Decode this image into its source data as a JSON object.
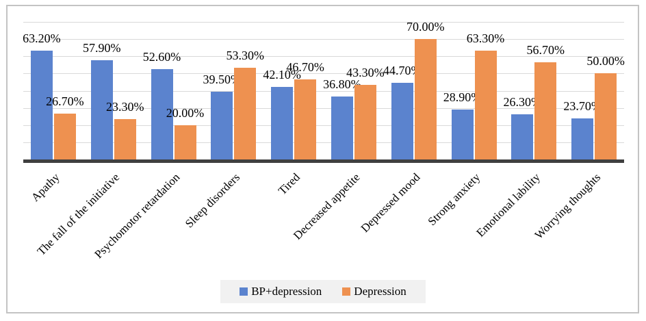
{
  "chart_data": {
    "type": "bar",
    "title": "",
    "xlabel": "",
    "ylabel": "",
    "categories": [
      "Apathy",
      "The fall of the initiative",
      "Psychomotor retardation",
      "Sleep disorders",
      "Tired",
      "Decreased appetite",
      "Depressed mood",
      "Strong anxiety",
      "Emotional lability",
      "Worrying thoughts"
    ],
    "series": [
      {
        "name": "BP+depression",
        "color": "#5B83CE",
        "values": [
          63.2,
          57.9,
          52.6,
          39.5,
          42.1,
          36.8,
          44.7,
          28.9,
          26.3,
          23.7
        ],
        "data_labels": [
          "63.20%",
          "57.90%",
          "52.60%",
          "39.50%",
          "42.10%",
          "36.80%",
          "44.70%",
          "28.90%",
          "26.30%",
          "23.70%"
        ]
      },
      {
        "name": "Depression",
        "color": "#EE9150",
        "values": [
          26.7,
          23.3,
          20.0,
          53.3,
          46.7,
          43.3,
          70.0,
          63.3,
          56.7,
          50.0
        ],
        "data_labels": [
          "26.70%",
          "23.30%",
          "20.00%",
          "53.30%",
          "46.70%",
          "43.30%",
          "70.00%",
          "63.30%",
          "56.70%",
          "50.00%"
        ]
      }
    ],
    "ylim": [
      0,
      80
    ],
    "grid_step": 10,
    "grid_on": true,
    "y_axis_labels_visible": false,
    "legend_position": "bottom",
    "colors": {
      "gridline": "#D9D9D9",
      "axis_line": "#3F3F3F",
      "frame_border": "#C3C3C3",
      "legend_background": "#F1F1F1",
      "data_label_text": "#000000"
    }
  },
  "legend": {
    "items": [
      {
        "label": "BP+depression",
        "color": "#5B83CE"
      },
      {
        "label": "Depression",
        "color": "#EE9150"
      }
    ]
  }
}
